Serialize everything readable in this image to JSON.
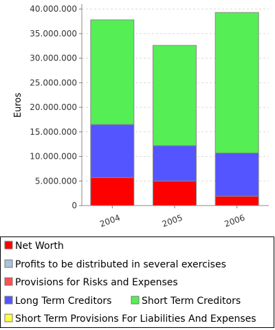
{
  "chart_data": {
    "type": "bar",
    "stacked": true,
    "title": "",
    "xlabel": "",
    "ylabel": "Euros",
    "categories": [
      "2004",
      "2005",
      "2006"
    ],
    "ylim": [
      0,
      41000000
    ],
    "yticks": [
      0,
      5000000,
      10000000,
      15000000,
      20000000,
      25000000,
      30000000,
      35000000,
      40000000
    ],
    "ytick_labels": [
      "0",
      "5.000.000",
      "10.000.000",
      "15.000.000",
      "20.000.000",
      "25.000.000",
      "30.000.000",
      "35.000.000",
      "40.000.000"
    ],
    "grid": true,
    "legend_position": "bottom",
    "series": [
      {
        "name": "Net Worth",
        "color": "#ff0000",
        "values": [
          5700000,
          5000000,
          1900000
        ]
      },
      {
        "name": "Profits to be distributed in several exercises",
        "color": "#a9c4dc",
        "values": [
          0,
          0,
          0
        ]
      },
      {
        "name": "Provisions for Risks and Expenses",
        "color": "#ff5050",
        "values": [
          0,
          0,
          0
        ]
      },
      {
        "name": "Long Term Creditors",
        "color": "#5555ff",
        "values": [
          10800000,
          7200000,
          8800000
        ]
      },
      {
        "name": "Short Term Creditors",
        "color": "#55ee55",
        "values": [
          21300000,
          20400000,
          28600000
        ]
      },
      {
        "name": "Short Term Provisions For Liabilities And Expenses",
        "color": "#ffff44",
        "values": [
          0,
          0,
          0
        ]
      }
    ]
  }
}
